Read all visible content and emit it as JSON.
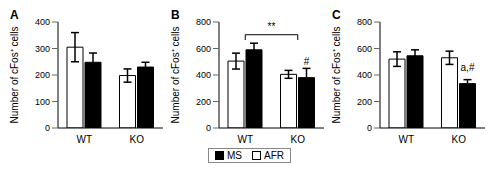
{
  "chart_data": [
    {
      "type": "bar",
      "title": "A",
      "y_label": "Number of cFos⁺ cells",
      "categories": [
        "WT",
        "KO"
      ],
      "series": [
        {
          "name": "AFR",
          "color": "#ffffff",
          "values": [
            305,
            198
          ],
          "errors": [
            55,
            25
          ]
        },
        {
          "name": "MS",
          "color": "#000000",
          "values": [
            248,
            230
          ],
          "errors": [
            35,
            18
          ]
        }
      ],
      "ylim": [
        0,
        400
      ],
      "yticks": [
        0,
        100,
        200,
        300,
        400
      ],
      "grid": false
    },
    {
      "type": "bar",
      "title": "B",
      "y_label": "Number of cFos⁺ cells",
      "categories": [
        "WT",
        "KO"
      ],
      "series": [
        {
          "name": "AFR",
          "color": "#ffffff",
          "values": [
            505,
            405
          ],
          "errors": [
            60,
            30
          ]
        },
        {
          "name": "MS",
          "color": "#000000",
          "values": [
            590,
            380
          ],
          "errors": [
            50,
            70
          ]
        }
      ],
      "ylim": [
        0,
        800
      ],
      "yticks": [
        0,
        200,
        400,
        600,
        800
      ],
      "grid": false,
      "legend": "bottom",
      "annotations": [
        {
          "text": "**",
          "from": "WT",
          "to": "KO"
        },
        {
          "text": "#",
          "category": "KO",
          "series": "MS"
        }
      ]
    },
    {
      "type": "bar",
      "title": "C",
      "y_label": "Number of cFos⁺ cells",
      "categories": [
        "WT",
        "KO"
      ],
      "series": [
        {
          "name": "AFR",
          "color": "#ffffff",
          "values": [
            520,
            530
          ],
          "errors": [
            55,
            50
          ]
        },
        {
          "name": "MS",
          "color": "#000000",
          "values": [
            545,
            335
          ],
          "errors": [
            45,
            30
          ]
        }
      ],
      "ylim": [
        0,
        800
      ],
      "yticks": [
        0,
        200,
        400,
        600,
        800
      ],
      "grid": false,
      "annotations": [
        {
          "text": "a,#",
          "category": "KO",
          "series": "MS"
        }
      ]
    }
  ]
}
